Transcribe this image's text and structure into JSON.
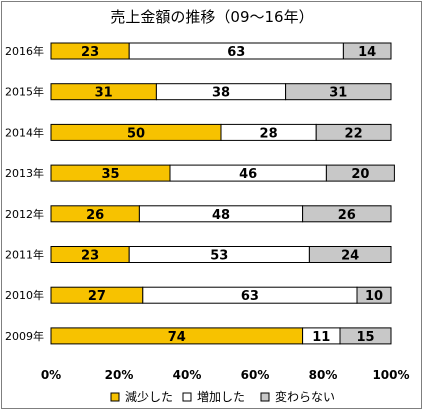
{
  "chart_data": {
    "type": "bar",
    "orientation": "horizontal",
    "stacked": "percent",
    "title": "売上金額の推移（09～16年）",
    "categories": [
      "2016年",
      "2015年",
      "2014年",
      "2013年",
      "2012年",
      "2011年",
      "2010年",
      "2009年"
    ],
    "series": [
      {
        "name": "減少した",
        "color": "#f7c200",
        "values": [
          23,
          31,
          50,
          35,
          26,
          23,
          27,
          74
        ]
      },
      {
        "name": "増加した",
        "color": "#ffffff",
        "values": [
          63,
          38,
          28,
          46,
          48,
          53,
          63,
          11
        ]
      },
      {
        "name": "変わらない",
        "color": "#c8c8c8",
        "values": [
          14,
          31,
          22,
          20,
          26,
          24,
          10,
          15
        ]
      }
    ],
    "xlim": [
      0,
      100
    ],
    "xticks": [
      "0%",
      "20%",
      "40%",
      "60%",
      "80%",
      "100%"
    ],
    "legend_position": "bottom",
    "grid": false
  }
}
